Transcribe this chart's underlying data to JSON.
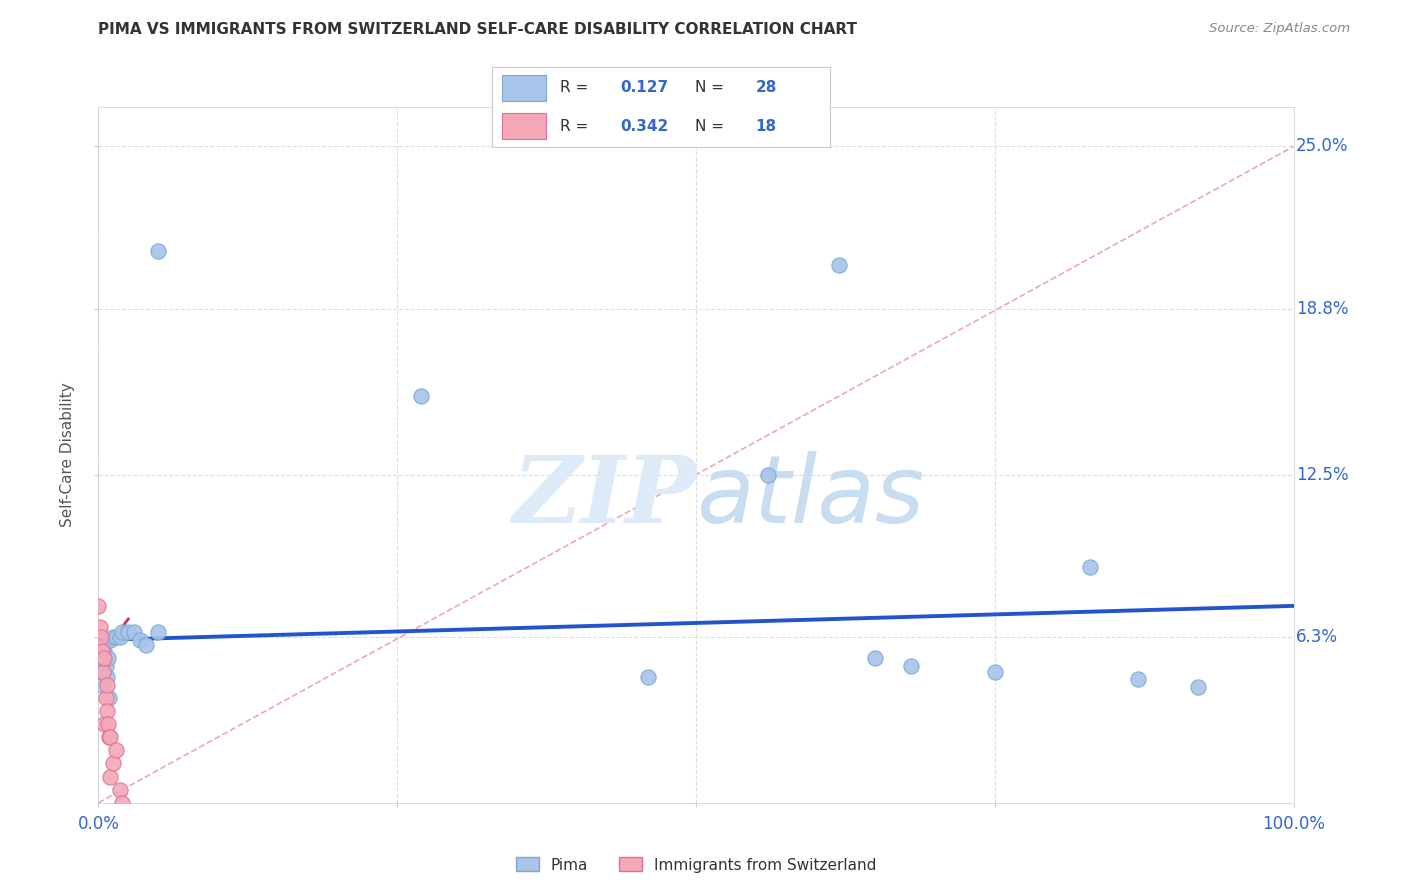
{
  "title": "PIMA VS IMMIGRANTS FROM SWITZERLAND SELF-CARE DISABILITY CORRELATION CHART",
  "source": "Source: ZipAtlas.com",
  "ylabel": "Self-Care Disability",
  "R1": 0.127,
  "N1": 28,
  "R2": 0.342,
  "N2": 18,
  "blue_color": "#a8c4e8",
  "blue_edge_color": "#7aaad4",
  "pink_color": "#f4a8b8",
  "pink_edge_color": "#e07090",
  "blue_line_color": "#2255cc",
  "pink_line_color": "#cc3355",
  "diag_color": "#e8a0a8",
  "dot_size": 120,
  "blue_x": [
    0.05,
    0.62,
    0.27,
    0.56,
    0.83,
    0.003,
    0.004,
    0.005,
    0.006,
    0.007,
    0.008,
    0.009,
    0.01,
    0.012,
    0.015,
    0.018,
    0.02,
    0.025,
    0.03,
    0.035,
    0.04,
    0.05,
    0.46,
    0.65,
    0.68,
    0.75,
    0.87,
    0.92
  ],
  "blue_y": [
    0.21,
    0.205,
    0.155,
    0.125,
    0.09,
    0.045,
    0.05,
    0.058,
    0.052,
    0.048,
    0.055,
    0.04,
    0.062,
    0.063,
    0.063,
    0.063,
    0.065,
    0.065,
    0.065,
    0.062,
    0.06,
    0.065,
    0.048,
    0.055,
    0.052,
    0.05,
    0.047,
    0.044
  ],
  "pink_x": [
    0.0,
    0.001,
    0.002,
    0.003,
    0.004,
    0.005,
    0.005,
    0.006,
    0.007,
    0.007,
    0.008,
    0.009,
    0.01,
    0.01,
    0.012,
    0.015,
    0.018,
    0.02
  ],
  "pink_y": [
    0.075,
    0.067,
    0.063,
    0.058,
    0.05,
    0.055,
    0.03,
    0.04,
    0.045,
    0.035,
    0.03,
    0.025,
    0.025,
    0.01,
    0.015,
    0.02,
    0.005,
    0.0
  ],
  "legend_label1": "Pima",
  "legend_label2": "Immigrants from Switzerland",
  "watermark_zip": "ZIP",
  "watermark_atlas": "atlas",
  "watermark_color": "#c8ddf0",
  "ylim": [
    0.0,
    0.265
  ],
  "xlim": [
    0.0,
    1.0
  ],
  "ytick_vals": [
    0.063,
    0.125,
    0.188,
    0.25
  ],
  "ytick_labels": [
    "6.3%",
    "12.5%",
    "18.8%",
    "25.0%"
  ],
  "xtick_vals": [
    0.0,
    0.25,
    0.5,
    0.75,
    1.0
  ],
  "xtick_labels": [
    "0.0%",
    "",
    "",
    "",
    "100.0%"
  ],
  "axis_color": "#3366cc",
  "background_color": "#ffffff",
  "grid_color": "#dddddd",
  "title_color": "#333333",
  "source_color": "#888888"
}
